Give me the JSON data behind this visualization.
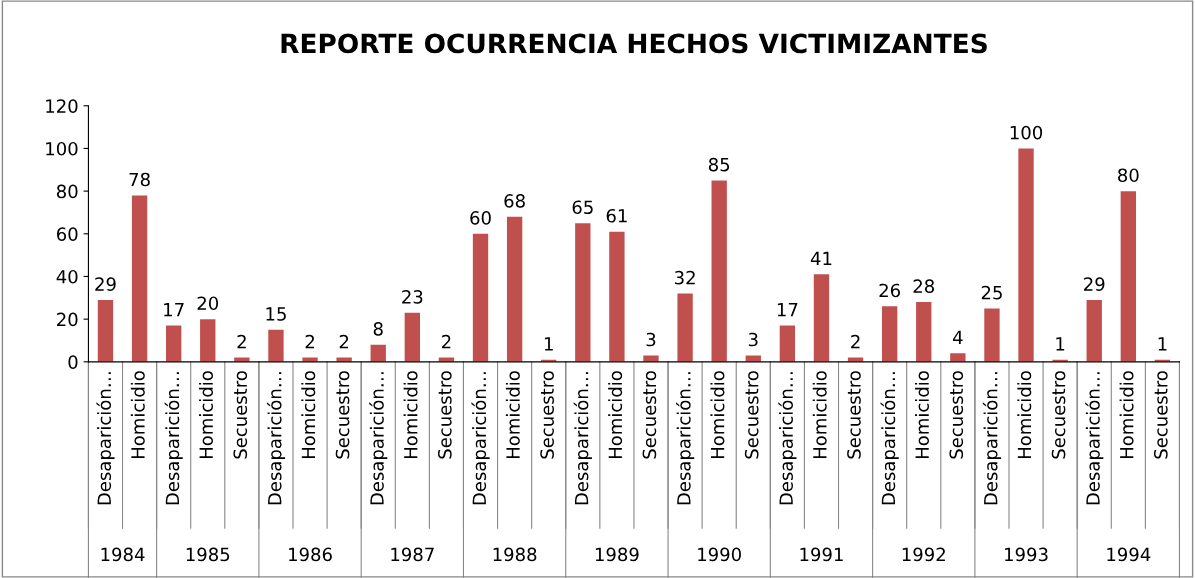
{
  "chart_data": {
    "type": "bar",
    "title": "REPORTE OCURRENCIA HECHOS VICTIMIZANTES",
    "categories": [
      "Desaparición…",
      "Homicidio",
      "Desaparición…",
      "Homicidio",
      "Secuestro",
      "Desaparición…",
      "Homicidio",
      "Secuestro",
      "Desaparición…",
      "Homicidio",
      "Secuestro",
      "Desaparición…",
      "Homicidio",
      "Secuestro",
      "Desaparición…",
      "Homicidio",
      "Secuestro",
      "Desaparición…",
      "Homicidio",
      "Secuestro",
      "Desaparición…",
      "Homicidio",
      "Secuestro",
      "Desaparición…",
      "Homicidio",
      "Secuestro",
      "Desaparición…",
      "Homicidio",
      "Secuestro",
      "Desaparición…",
      "Homicidio",
      "Secuestro"
    ],
    "values": [
      29,
      78,
      17,
      20,
      2,
      15,
      2,
      2,
      8,
      23,
      2,
      60,
      68,
      1,
      65,
      61,
      3,
      32,
      85,
      3,
      17,
      41,
      2,
      26,
      28,
      4,
      25,
      100,
      1,
      29,
      80,
      1
    ],
    "color": "#c0504d",
    "ylim": [
      0,
      120
    ],
    "yticks": [
      0,
      20,
      40,
      60,
      80,
      100,
      120
    ],
    "data_labels": true,
    "grid": false,
    "annotations": [
      "1984",
      "1985",
      "1986",
      "1987",
      "1988",
      "1989",
      "1990",
      "1991",
      "1992",
      "1993",
      "1994"
    ]
  }
}
